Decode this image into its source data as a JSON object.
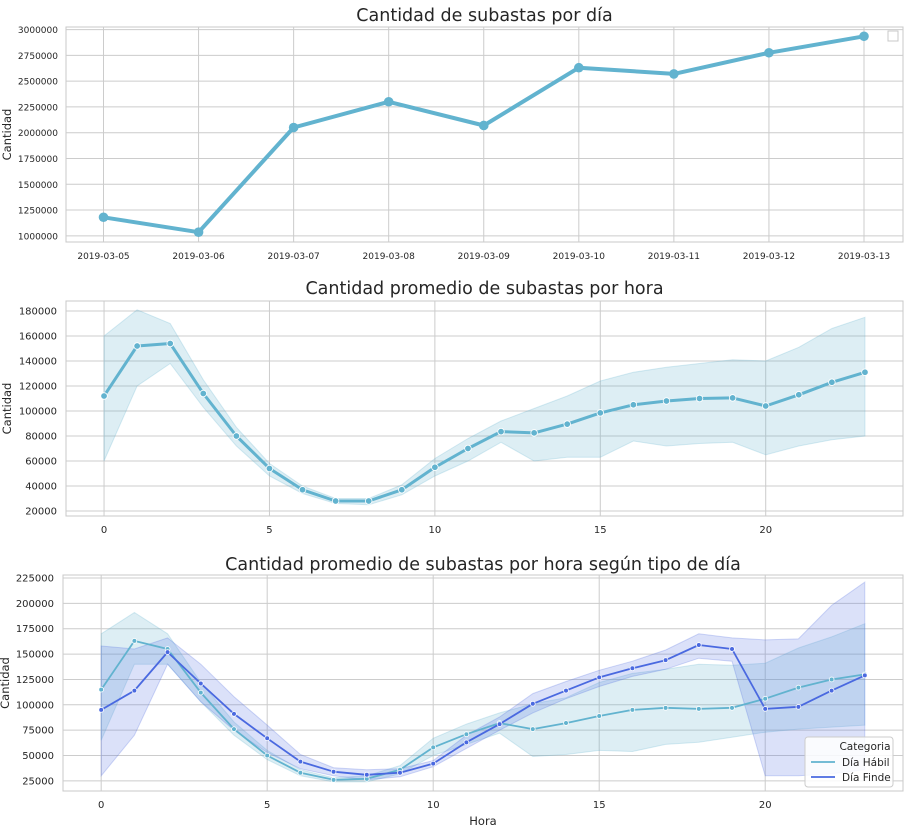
{
  "colors": {
    "habil": "#62b3cf",
    "finde": "#4a69e0",
    "grid": "#cccccc",
    "frame": "#c8c8c8"
  },
  "chart_data": [
    {
      "type": "line",
      "title": "Cantidad de subastas por día",
      "xlabel": "",
      "ylabel": "Cantidad",
      "categories": [
        "2019-03-05",
        "2019-03-06",
        "2019-03-07",
        "2019-03-08",
        "2019-03-09",
        "2019-03-10",
        "2019-03-11",
        "2019-03-12",
        "2019-03-13"
      ],
      "ylim": [
        940000,
        3025000
      ],
      "yticks": [
        1000000,
        1250000,
        1500000,
        1750000,
        2000000,
        2250000,
        2500000,
        2750000,
        3000000
      ],
      "series": [
        {
          "color": "habil",
          "values": [
            1180000,
            1035000,
            2050000,
            2300000,
            2070000,
            2630000,
            2570000,
            2775000,
            2935000
          ]
        }
      ],
      "legend": "empty box, top-right",
      "grid": true
    },
    {
      "type": "line",
      "title": "Cantidad promedio de subastas por hora",
      "xlabel": "",
      "ylabel": "Cantidad",
      "x": [
        0,
        1,
        2,
        3,
        4,
        5,
        6,
        7,
        8,
        9,
        10,
        11,
        12,
        13,
        14,
        15,
        16,
        17,
        18,
        19,
        20,
        21,
        22,
        23
      ],
      "xlim": [
        -1.15,
        24.15
      ],
      "xticks": [
        0,
        5,
        10,
        15,
        20
      ],
      "ylim": [
        16000,
        188000
      ],
      "yticks": [
        20000,
        40000,
        60000,
        80000,
        100000,
        120000,
        140000,
        160000,
        180000
      ],
      "series": [
        {
          "color": "habil",
          "values": [
            112000,
            152000,
            154000,
            114000,
            80000,
            54000,
            37000,
            28000,
            28000,
            37000,
            55000,
            70000,
            83500,
            82500,
            89500,
            98500,
            105000,
            108000,
            110000,
            110500,
            104000,
            113000,
            123000,
            131000
          ],
          "ci_low": [
            60000,
            120000,
            138000,
            103000,
            72000,
            48000,
            34000,
            26000,
            25000,
            33000,
            48000,
            60000,
            75000,
            60000,
            63000,
            63000,
            76000,
            72000,
            74000,
            75000,
            65000,
            72000,
            77000,
            80000
          ],
          "ci_high": [
            160000,
            181000,
            170000,
            125000,
            87000,
            58000,
            40000,
            30000,
            30000,
            41000,
            62000,
            78000,
            92000,
            102000,
            112000,
            124000,
            131000,
            135000,
            138000,
            141000,
            140000,
            151000,
            166000,
            175000
          ]
        }
      ],
      "grid": true
    },
    {
      "type": "line",
      "title": "Cantidad promedio de subastas por hora según tipo de día",
      "xlabel": "Hora",
      "ylabel": "Cantidad",
      "x": [
        0,
        1,
        2,
        3,
        4,
        5,
        6,
        7,
        8,
        9,
        10,
        11,
        12,
        13,
        14,
        15,
        16,
        17,
        18,
        19,
        20,
        21,
        22,
        23
      ],
      "xlim": [
        -1.15,
        24.15
      ],
      "xticks": [
        0,
        5,
        10,
        15,
        20
      ],
      "ylim": [
        15000,
        228000
      ],
      "yticks": [
        25000,
        50000,
        75000,
        100000,
        125000,
        150000,
        175000,
        200000,
        225000
      ],
      "legend": {
        "title": "Categoria",
        "position": "lower right"
      },
      "series": [
        {
          "name": "Día Hábil",
          "color": "habil",
          "values": [
            115000,
            163000,
            155000,
            112000,
            76000,
            50000,
            33000,
            26000,
            27000,
            36000,
            58000,
            71000,
            82000,
            76000,
            82000,
            89000,
            95000,
            97000,
            96000,
            97000,
            106000,
            117000,
            125000,
            130000
          ],
          "ci_low": [
            65000,
            140000,
            140000,
            103000,
            70000,
            46000,
            30000,
            24000,
            24000,
            32000,
            50000,
            61000,
            72000,
            49000,
            51000,
            55000,
            54000,
            61000,
            63000,
            68000,
            73000,
            76000,
            78000,
            80000
          ],
          "ci_high": [
            170000,
            191000,
            170000,
            122000,
            83000,
            55000,
            36000,
            28000,
            30000,
            40000,
            67000,
            81000,
            92000,
            101000,
            107000,
            122000,
            131000,
            135000,
            140000,
            139000,
            141000,
            156000,
            167000,
            180000
          ]
        },
        {
          "name": "Día Finde",
          "color": "finde",
          "values": [
            95000,
            114000,
            152000,
            121000,
            91000,
            67000,
            44000,
            34000,
            31000,
            33000,
            42000,
            63000,
            81000,
            101000,
            114000,
            127000,
            136000,
            144000,
            159000,
            155000,
            96000,
            98000,
            114000,
            129000
          ],
          "ci_low": [
            30000,
            70000,
            140000,
            103000,
            75000,
            53000,
            37000,
            30000,
            26000,
            29000,
            39000,
            57000,
            75000,
            92000,
            106000,
            118000,
            128000,
            135000,
            146000,
            143000,
            30000,
            30000,
            32000,
            36000
          ],
          "ci_high": [
            158000,
            155000,
            166000,
            140000,
            108000,
            80000,
            51000,
            38000,
            36000,
            37000,
            45000,
            70000,
            88000,
            111000,
            123000,
            134000,
            143000,
            154000,
            170000,
            166000,
            164000,
            165000,
            198000,
            221000
          ]
        }
      ],
      "grid": true
    }
  ]
}
